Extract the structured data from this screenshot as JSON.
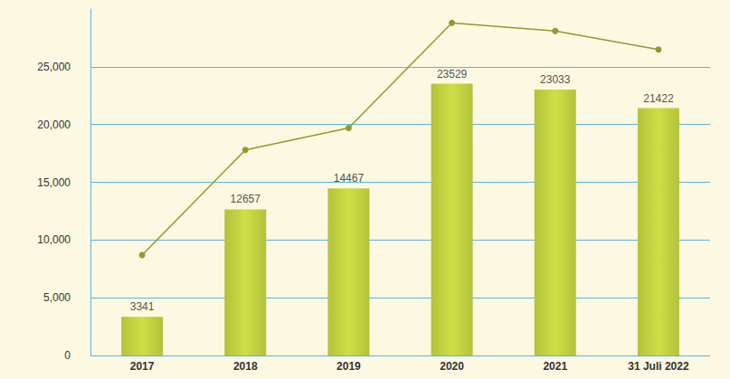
{
  "chart_data": {
    "type": "bar",
    "categories": [
      "2017",
      "2018",
      "2019",
      "2020",
      "2021",
      "31 Juli 2022"
    ],
    "series": [
      {
        "type": "bar",
        "color": "#b3c23c",
        "values": [
          3341,
          12657,
          14467,
          23529,
          23033,
          21422
        ],
        "data_labels": true
      },
      {
        "type": "line",
        "color": "#8e9c2e",
        "marker": "circle",
        "values": [
          8700,
          17800,
          19700,
          28800,
          28100,
          26500
        ]
      }
    ],
    "ylim": [
      0,
      30000
    ],
    "yticks": [
      0,
      5000,
      10000,
      15000,
      20000,
      25000
    ],
    "grid": true
  }
}
